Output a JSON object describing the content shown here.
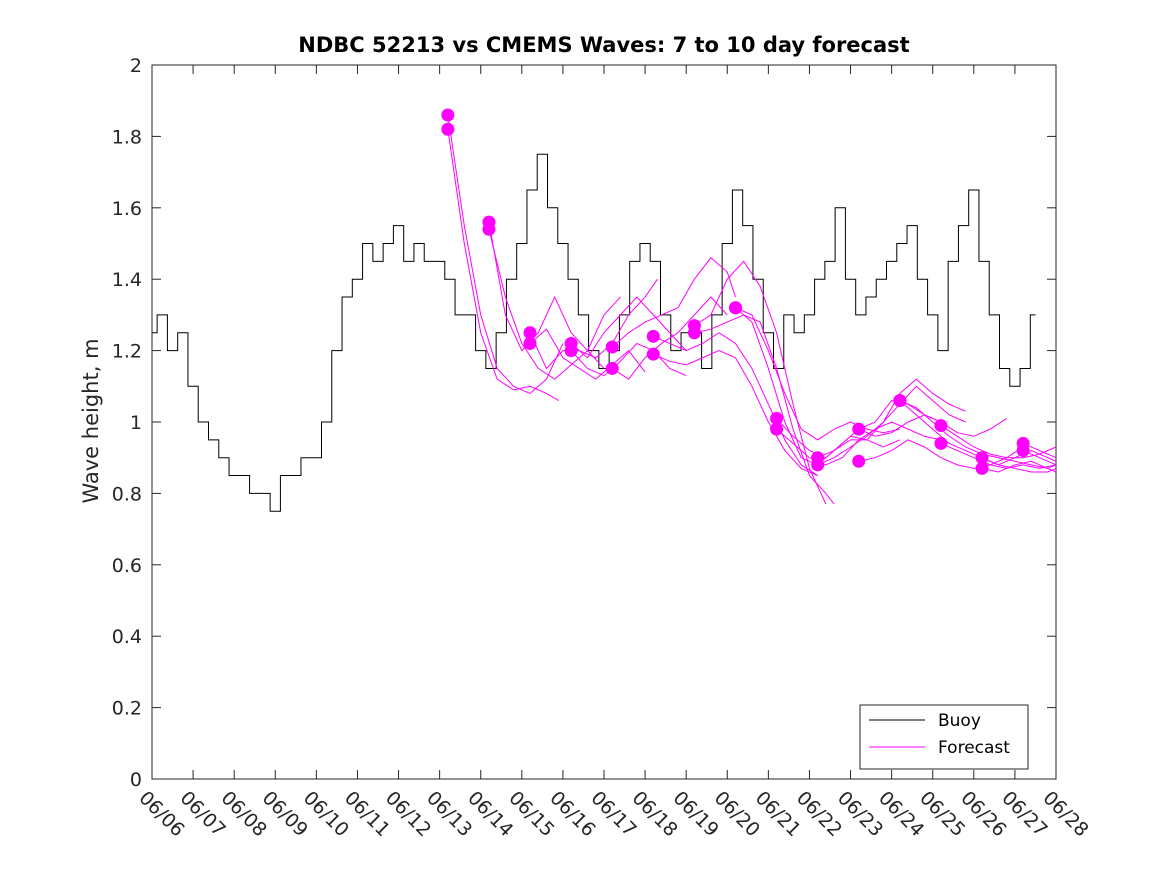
{
  "chart_data": {
    "type": "line",
    "title": "NDBC 52213 vs CMEMS Waves: 7 to 10 day forecast",
    "xlabel": "",
    "ylabel": "Wave height, m",
    "xlim": [
      0,
      22
    ],
    "ylim": [
      0,
      2
    ],
    "x_unit": "days after 06/06",
    "x_tick_labels": [
      "06/06",
      "06/07",
      "06/08",
      "06/09",
      "06/10",
      "06/11",
      "06/12",
      "06/13",
      "06/14",
      "06/15",
      "06/16",
      "06/17",
      "06/18",
      "06/19",
      "06/20",
      "06/21",
      "06/22",
      "06/23",
      "06/24",
      "06/25",
      "06/26",
      "06/27",
      "06/28"
    ],
    "y_ticks": [
      0,
      0.2,
      0.4,
      0.6,
      0.8,
      1,
      1.2,
      1.4,
      1.6,
      1.8,
      2
    ],
    "y_tick_labels": [
      "0",
      "0.2",
      "0.4",
      "0.6",
      "0.8",
      "1",
      "1.2",
      "1.4",
      "1.6",
      "1.8",
      "2"
    ],
    "grid": false,
    "legend": {
      "position": "bottom-right",
      "entries": [
        "Buoy",
        "Forecast"
      ]
    },
    "colors": {
      "buoy": "#000000",
      "forecast": "#ff00ff"
    },
    "series": [
      {
        "name": "Buoy",
        "x": [
          0,
          0.25,
          0.5,
          0.75,
          1,
          1.25,
          1.5,
          1.75,
          2,
          2.25,
          2.5,
          2.75,
          3,
          3.25,
          3.5,
          3.75,
          4,
          4.25,
          4.5,
          4.75,
          5,
          5.25,
          5.5,
          5.75,
          6,
          6.25,
          6.5,
          6.75,
          7,
          7.25,
          7.5,
          7.75,
          8,
          8.25,
          8.5,
          8.75,
          9,
          9.25,
          9.5,
          9.75,
          10,
          10.25,
          10.5,
          10.75,
          11,
          11.25,
          11.5,
          11.75,
          12,
          12.25,
          12.5,
          12.75,
          13,
          13.25,
          13.5,
          13.75,
          14,
          14.25,
          14.5,
          14.75,
          15,
          15.25,
          15.5,
          15.75,
          16,
          16.25,
          16.5,
          16.75,
          17,
          17.25,
          17.5,
          17.75,
          18,
          18.25,
          18.5,
          18.75,
          19,
          19.25,
          19.5,
          19.75,
          20,
          20.25,
          20.5,
          20.75,
          21,
          21.25,
          21.5
        ],
        "y": [
          1.25,
          1.3,
          1.2,
          1.25,
          1.1,
          1.0,
          0.95,
          0.9,
          0.85,
          0.85,
          0.8,
          0.8,
          0.75,
          0.85,
          0.85,
          0.9,
          0.9,
          1.0,
          1.2,
          1.35,
          1.4,
          1.5,
          1.45,
          1.5,
          1.55,
          1.45,
          1.5,
          1.45,
          1.45,
          1.4,
          1.3,
          1.3,
          1.2,
          1.15,
          1.25,
          1.4,
          1.5,
          1.65,
          1.75,
          1.6,
          1.5,
          1.4,
          1.3,
          1.2,
          1.15,
          1.2,
          1.3,
          1.45,
          1.5,
          1.45,
          1.3,
          1.2,
          1.25,
          1.25,
          1.15,
          1.3,
          1.5,
          1.65,
          1.55,
          1.4,
          1.25,
          1.15,
          1.3,
          1.25,
          1.3,
          1.4,
          1.45,
          1.6,
          1.4,
          1.3,
          1.35,
          1.4,
          1.45,
          1.5,
          1.55,
          1.4,
          1.3,
          1.2,
          1.45,
          1.55,
          1.65,
          1.45,
          1.3,
          1.15,
          1.1,
          1.15,
          1.3
        ]
      },
      {
        "name": "Forecast",
        "runs": [
          {
            "x": [
              7.2,
              7.6,
              8.0,
              8.4,
              8.8,
              9.2,
              9.6,
              10.0
            ],
            "y": [
              1.86,
              1.55,
              1.3,
              1.15,
              1.1,
              1.08,
              1.12,
              1.22
            ]
          },
          {
            "x": [
              7.2,
              7.6,
              8.0,
              8.4,
              8.8,
              9.2,
              9.6,
              9.9
            ],
            "y": [
              1.82,
              1.5,
              1.25,
              1.12,
              1.09,
              1.1,
              1.08,
              1.06
            ]
          },
          {
            "x": [
              8.2,
              8.6,
              9.0,
              9.4,
              9.8,
              10.2,
              10.6,
              11.0,
              11.4
            ],
            "y": [
              1.56,
              1.3,
              1.2,
              1.25,
              1.35,
              1.25,
              1.2,
              1.3,
              1.35
            ]
          },
          {
            "x": [
              8.2,
              8.6,
              9.0,
              9.4,
              9.8,
              10.2,
              10.6,
              11.0
            ],
            "y": [
              1.54,
              1.35,
              1.22,
              1.15,
              1.12,
              1.16,
              1.2,
              1.15
            ]
          },
          {
            "x": [
              9.2,
              9.6,
              10.0,
              10.4,
              10.8,
              11.2,
              11.6,
              12.0,
              12.3
            ],
            "y": [
              1.25,
              1.15,
              1.2,
              1.2,
              1.18,
              1.22,
              1.3,
              1.35,
              1.4
            ]
          },
          {
            "x": [
              9.2,
              9.6,
              10.0,
              10.4,
              10.8,
              11.2,
              11.6,
              12.0
            ],
            "y": [
              1.22,
              1.26,
              1.18,
              1.15,
              1.12,
              1.16,
              1.2,
              1.14
            ]
          },
          {
            "x": [
              10.2,
              10.6,
              11.0,
              11.4,
              11.8,
              12.2,
              12.6,
              13.0
            ],
            "y": [
              1.22,
              1.18,
              1.25,
              1.3,
              1.35,
              1.3,
              1.25,
              1.2
            ]
          },
          {
            "x": [
              10.2,
              10.6,
              11.0,
              11.4,
              11.8,
              12.2,
              12.6,
              13.0
            ],
            "y": [
              1.2,
              1.15,
              1.13,
              1.17,
              1.22,
              1.2,
              1.15,
              1.13
            ]
          },
          {
            "x": [
              11.2,
              11.6,
              12.0,
              12.4,
              12.8,
              13.2,
              13.6,
              14.0,
              14.2
            ],
            "y": [
              1.21,
              1.25,
              1.28,
              1.3,
              1.32,
              1.4,
              1.46,
              1.42,
              1.35
            ]
          },
          {
            "x": [
              11.2,
              11.6,
              12.0,
              12.4,
              12.8,
              13.2,
              13.6,
              14.0
            ],
            "y": [
              1.15,
              1.12,
              1.18,
              1.22,
              1.25,
              1.3,
              1.35,
              1.3
            ]
          },
          {
            "x": [
              12.2,
              12.6,
              13.0,
              13.4,
              13.8,
              14.2,
              14.6,
              15.0,
              15.4,
              15.8,
              16.2
            ],
            "y": [
              1.24,
              1.22,
              1.2,
              1.22,
              1.25,
              1.22,
              1.15,
              1.05,
              0.95,
              0.88,
              0.85
            ]
          },
          {
            "x": [
              12.2,
              12.6,
              13.0,
              13.4,
              13.8,
              14.2,
              14.6,
              15.0,
              15.4,
              15.8,
              16.2
            ],
            "y": [
              1.19,
              1.17,
              1.16,
              1.18,
              1.2,
              1.18,
              1.1,
              1.0,
              0.92,
              0.87,
              0.85
            ]
          },
          {
            "x": [
              13.2,
              13.6,
              14.0,
              14.4,
              14.8,
              15.2,
              15.6,
              16.0,
              16.4
            ],
            "y": [
              1.27,
              1.3,
              1.4,
              1.45,
              1.38,
              1.25,
              1.05,
              0.87,
              0.77
            ]
          },
          {
            "x": [
              13.2,
              13.6,
              14.0,
              14.4,
              14.8,
              15.2,
              15.6,
              16.0,
              16.4,
              16.6
            ],
            "y": [
              1.25,
              1.26,
              1.28,
              1.3,
              1.28,
              1.15,
              0.98,
              0.85,
              0.8,
              0.77
            ]
          },
          {
            "x": [
              14.2,
              14.6,
              15.0,
              15.4,
              15.8,
              16.2,
              16.6,
              17.0,
              17.4,
              17.8,
              18.2
            ],
            "y": [
              1.32,
              1.3,
              1.2,
              1.08,
              0.98,
              0.95,
              0.98,
              1.0,
              0.98,
              0.97,
              0.98
            ]
          },
          {
            "x": [
              14.2,
              14.6,
              15.0,
              15.4,
              15.8,
              16.2,
              16.6,
              17.0,
              17.4,
              17.8,
              18.2
            ],
            "y": [
              1.32,
              1.28,
              1.15,
              1.0,
              0.9,
              0.88,
              0.92,
              0.96,
              0.95,
              0.93,
              0.95
            ]
          },
          {
            "x": [
              15.2,
              15.6,
              16.0,
              16.4,
              16.8,
              17.2,
              17.6,
              18.0,
              18.4,
              18.8,
              19.2
            ],
            "y": [
              1.01,
              0.96,
              0.92,
              0.9,
              0.94,
              0.98,
              1.0,
              1.06,
              1.05,
              1.02,
              1.0
            ]
          },
          {
            "x": [
              15.2,
              15.6,
              16.0,
              16.4,
              16.8,
              17.2,
              17.6,
              18.0,
              18.4,
              18.8,
              19.2
            ],
            "y": [
              0.98,
              0.94,
              0.9,
              0.88,
              0.9,
              0.95,
              0.98,
              1.0,
              0.98,
              0.96,
              0.95
            ]
          },
          {
            "x": [
              16.2,
              16.6,
              17.0,
              17.4,
              17.8,
              18.2,
              18.6,
              19.0,
              19.4,
              19.8
            ],
            "y": [
              0.9,
              0.92,
              0.95,
              0.95,
              1.0,
              1.08,
              1.12,
              1.08,
              1.05,
              1.03
            ]
          },
          {
            "x": [
              16.2,
              16.6,
              17.0,
              17.4,
              17.8,
              18.2,
              18.6,
              19.0,
              19.4,
              19.8
            ],
            "y": [
              0.88,
              0.9,
              0.93,
              0.96,
              1.0,
              1.05,
              1.1,
              1.06,
              1.02,
              1.0
            ]
          },
          {
            "x": [
              17.2,
              17.6,
              18.0,
              18.4,
              18.8,
              19.2,
              19.6,
              20.0,
              20.4,
              20.8
            ],
            "y": [
              0.98,
              0.96,
              0.97,
              1.0,
              1.02,
              1.0,
              0.97,
              0.96,
              0.98,
              1.01
            ]
          },
          {
            "x": [
              17.2,
              17.6,
              18.0,
              18.4,
              18.8,
              19.2,
              19.6,
              20.0,
              20.4,
              20.8,
              21.2
            ],
            "y": [
              0.89,
              0.9,
              0.92,
              0.95,
              0.93,
              0.9,
              0.88,
              0.87,
              0.88,
              0.9,
              0.93
            ]
          },
          {
            "x": [
              18.2,
              18.6,
              19.0,
              19.4,
              19.8,
              20.2,
              20.6,
              21.0,
              21.4,
              21.8,
              22.0
            ],
            "y": [
              1.06,
              1.04,
              1.0,
              0.96,
              0.93,
              0.91,
              0.9,
              0.89,
              0.88,
              0.87,
              0.88
            ]
          },
          {
            "x": [
              18.2,
              18.6,
              19.0,
              19.4,
              19.8,
              20.2,
              20.6,
              21.0,
              21.4,
              21.8,
              22.0
            ],
            "y": [
              1.06,
              1.02,
              0.98,
              0.94,
              0.92,
              0.9,
              0.88,
              0.87,
              0.86,
              0.86,
              0.87
            ]
          },
          {
            "x": [
              19.2,
              19.6,
              20.0,
              20.4,
              20.8,
              21.2,
              21.6,
              22.0
            ],
            "y": [
              0.99,
              0.96,
              0.93,
              0.91,
              0.9,
              0.9,
              0.91,
              0.93
            ]
          },
          {
            "x": [
              19.2,
              19.6,
              20.0,
              20.4,
              20.8,
              21.2,
              21.6,
              22.0
            ],
            "y": [
              0.94,
              0.92,
              0.9,
              0.88,
              0.87,
              0.88,
              0.87,
              0.88
            ]
          },
          {
            "x": [
              20.2,
              20.6,
              21.0,
              21.4,
              21.8,
              22.0
            ],
            "y": [
              0.9,
              0.88,
              0.9,
              0.92,
              0.9,
              0.89
            ]
          },
          {
            "x": [
              20.2,
              20.6,
              21.0,
              21.4,
              21.8,
              22.0
            ],
            "y": [
              0.87,
              0.86,
              0.88,
              0.89,
              0.87,
              0.86
            ]
          },
          {
            "x": [
              21.2,
              21.6,
              22.0
            ],
            "y": [
              0.94,
              0.92,
              0.9
            ]
          },
          {
            "x": [
              21.2,
              21.6,
              22.0
            ],
            "y": [
              0.92,
              0.9,
              0.88
            ]
          }
        ]
      }
    ]
  }
}
